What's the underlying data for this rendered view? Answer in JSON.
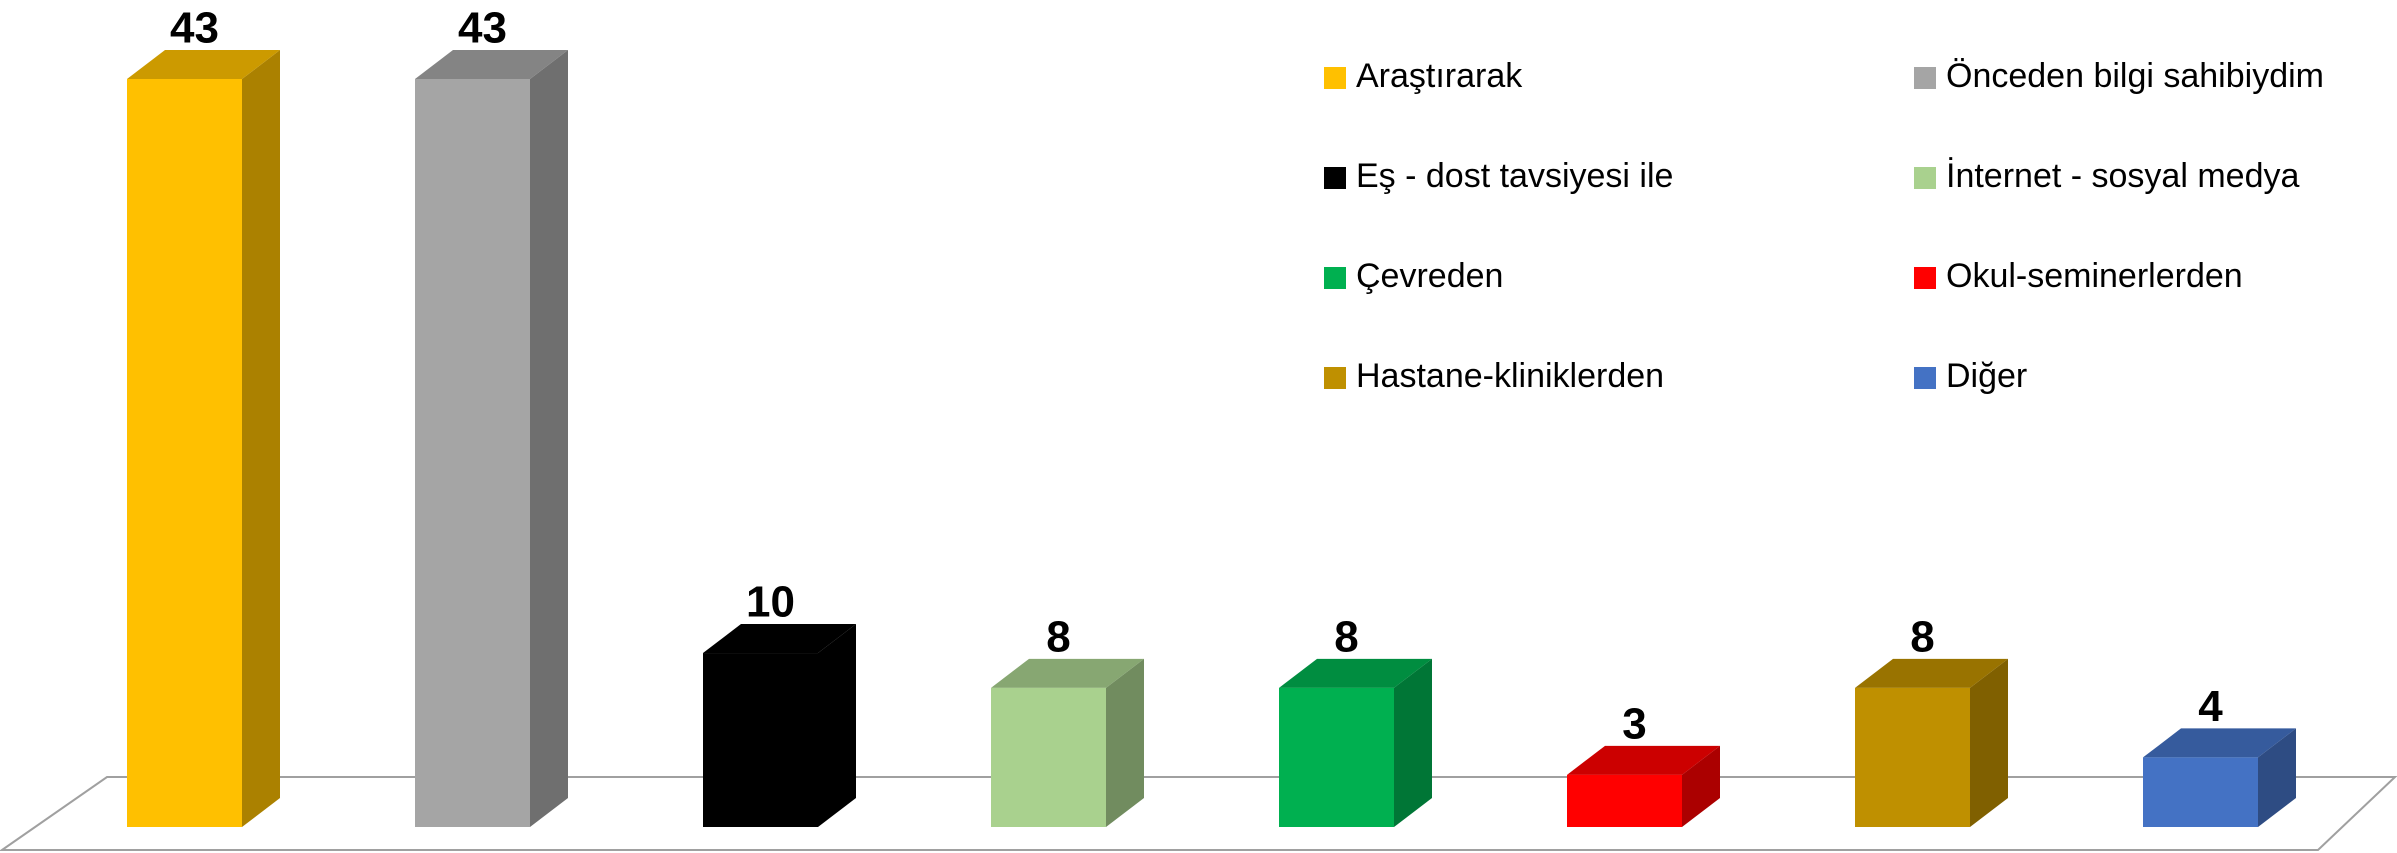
{
  "chart_data": {
    "type": "bar3d",
    "categories": [
      "Araştırarak",
      "Önceden bilgi sahibiydim",
      "Eş - dost tavsiyesi ile",
      "İnternet - sosyal medya",
      "Çevreden",
      "Okul-seminerlerden",
      "Hastane-kliniklerden",
      "Diğer"
    ],
    "values": [
      43,
      43,
      10,
      8,
      8,
      3,
      8,
      4
    ],
    "colors": [
      "#FFC000",
      "#A5A5A5",
      "#000000",
      "#A9D18E",
      "#00B050",
      "#FF0000",
      "#BF9000",
      "#4472C4"
    ],
    "legend": "top-right"
  }
}
